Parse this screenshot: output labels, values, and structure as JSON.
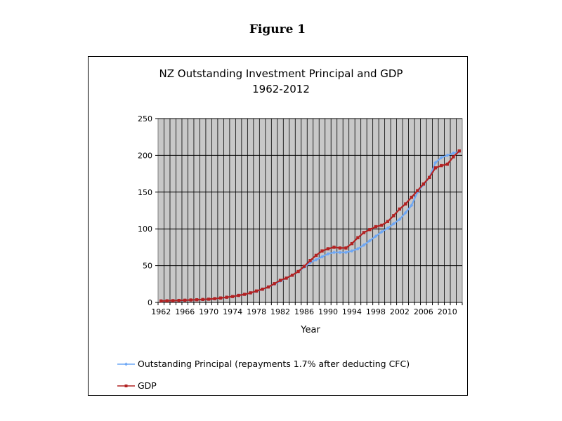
{
  "figure_label": "Figure 1",
  "chart_data": {
    "type": "line",
    "title_lines": [
      "NZ Outstanding Investment Principal and GDP",
      "1962-2012"
    ],
    "xlabel": "Year",
    "ylabel": "",
    "x_tick_labels": [
      "1962",
      "1966",
      "1970",
      "1974",
      "1978",
      "1982",
      "1986",
      "1990",
      "1994",
      "1998",
      "2002",
      "2006",
      "2010"
    ],
    "x_range": [
      1962,
      2012
    ],
    "ylim": [
      0,
      250
    ],
    "y_ticks": [
      0,
      50,
      100,
      150,
      200,
      250
    ],
    "grid": true,
    "legend_position": "bottom",
    "x": [
      1962,
      1963,
      1964,
      1965,
      1966,
      1967,
      1968,
      1969,
      1970,
      1971,
      1972,
      1973,
      1974,
      1975,
      1976,
      1977,
      1978,
      1979,
      1980,
      1981,
      1982,
      1983,
      1984,
      1985,
      1986,
      1987,
      1988,
      1989,
      1990,
      1991,
      1992,
      1993,
      1994,
      1995,
      1996,
      1997,
      1998,
      1999,
      2000,
      2001,
      2002,
      2003,
      2004,
      2005,
      2006,
      2007,
      2008,
      2009,
      2010,
      2011,
      2012
    ],
    "series": [
      {
        "name": "Outstanding Principal (repayments 1.7% after deducting CFC)",
        "color": "#6fa8f5",
        "marker": "diamond",
        "values": [
          2,
          2.2,
          2.4,
          2.6,
          2.9,
          3.2,
          3.5,
          3.9,
          4.3,
          5,
          6,
          7,
          8,
          9.5,
          11,
          13,
          15,
          18,
          21,
          25,
          29,
          33,
          37,
          42,
          48,
          54,
          58,
          62,
          66,
          68,
          68,
          68,
          70,
          73,
          78,
          84,
          90,
          96,
          101,
          107,
          113,
          122,
          132,
          150,
          160,
          170,
          190,
          197,
          200,
          203,
          205
        ]
      },
      {
        "name": "GDP",
        "color": "#b22222",
        "marker": "square",
        "values": [
          2,
          2.2,
          2.4,
          2.7,
          3,
          3.3,
          3.6,
          4,
          4.4,
          5.1,
          6,
          7,
          8,
          9.5,
          11,
          13,
          15.5,
          18,
          21,
          25.5,
          30,
          33,
          37,
          42,
          49,
          57,
          64,
          70,
          73,
          75,
          74,
          74,
          80,
          88,
          95,
          99,
          103,
          105,
          110,
          118,
          127,
          134,
          143,
          152,
          161,
          170,
          183,
          186,
          188,
          198,
          206
        ]
      }
    ]
  }
}
